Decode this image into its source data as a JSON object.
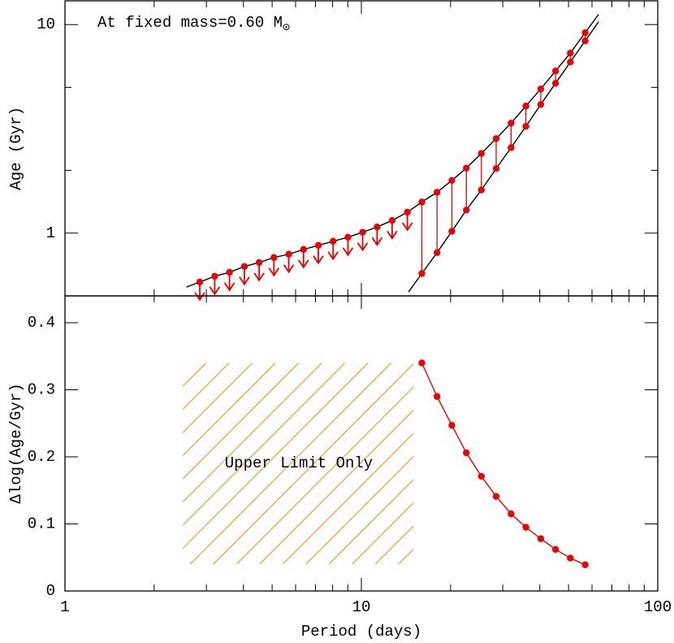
{
  "chart_data": [
    {
      "type": "scatter",
      "annotation": "At fixed mass=0.60 M",
      "annotation_subscript": "⊙",
      "ylabel": "Age (Gyr)",
      "x": [
        2.85,
        3.2,
        3.59,
        4.03,
        4.52,
        5.07,
        5.69,
        6.38,
        7.16,
        8.03,
        9.01,
        10.1,
        11.3,
        12.7,
        14.3,
        16.0,
        18.0,
        20.2,
        22.6,
        25.4,
        28.5,
        32.0,
        35.9,
        40.3,
        45.2,
        50.7,
        56.9
      ],
      "xlim": [
        1,
        100
      ],
      "xticks": [
        1,
        10,
        100
      ],
      "xminorticks": [
        2,
        3,
        4,
        5,
        6,
        7,
        8,
        9,
        20,
        30,
        40,
        50,
        60,
        70,
        80,
        90
      ],
      "xlog": true,
      "xticklabels": false,
      "ylim": [
        0.5,
        13
      ],
      "yticks": [
        1,
        10
      ],
      "yminorticks": [
        2,
        5
      ],
      "ylog": true,
      "fit_color": "#000000",
      "connect_color": "#ee0000",
      "series": [
        {
          "color": "#ee0000",
          "values": [
            0.583,
            0.621,
            0.649,
            0.692,
            0.723,
            0.764,
            0.792,
            0.835,
            0.874,
            0.914,
            0.956,
            1.01,
            1.07,
            1.15,
            1.26,
            1.41,
            1.57,
            1.79,
            2.05,
            2.41,
            2.84,
            3.37,
            4.07,
            4.91,
            5.99,
            7.3,
            9.14
          ],
          "upper_limit": [
            true,
            true,
            true,
            true,
            true,
            true,
            true,
            true,
            true,
            true,
            true,
            true,
            true,
            true,
            true,
            false,
            false,
            false,
            false,
            false,
            false,
            false,
            false,
            false,
            false,
            false,
            false
          ]
        },
        {
          "color": "#ee0000",
          "values": [
            null,
            null,
            null,
            null,
            null,
            null,
            null,
            null,
            null,
            null,
            null,
            null,
            null,
            null,
            null,
            0.64,
            0.806,
            1.02,
            1.29,
            1.61,
            2.04,
            2.57,
            3.25,
            4.14,
            5.23,
            6.61,
            8.35
          ]
        }
      ]
    },
    {
      "type": "line",
      "xlabel": "Period (days)",
      "ylabel": "Δlog(Age/Gyr)",
      "x": [
        16.0,
        18.0,
        20.2,
        22.6,
        25.4,
        28.5,
        32.0,
        35.9,
        40.3,
        45.2,
        50.7,
        56.9
      ],
      "values": [
        0.34,
        0.29,
        0.247,
        0.206,
        0.171,
        0.141,
        0.115,
        0.095,
        0.078,
        0.062,
        0.049,
        0.039
      ],
      "color": "#ee0000",
      "xlim": [
        1,
        100
      ],
      "xticks": [
        1,
        10,
        100
      ],
      "xminorticks": [
        2,
        3,
        4,
        5,
        6,
        7,
        8,
        9,
        20,
        30,
        40,
        50,
        60,
        70,
        80,
        90
      ],
      "xlog": true,
      "ylim": [
        0,
        0.44
      ],
      "yticks": [
        0,
        0.1,
        0.2,
        0.3,
        0.4
      ],
      "region": {
        "xlim": [
          2.5,
          15
        ],
        "ylim": [
          0.04,
          0.34
        ],
        "label": "Upper Limit Only",
        "color": "#e8a33a"
      }
    }
  ]
}
